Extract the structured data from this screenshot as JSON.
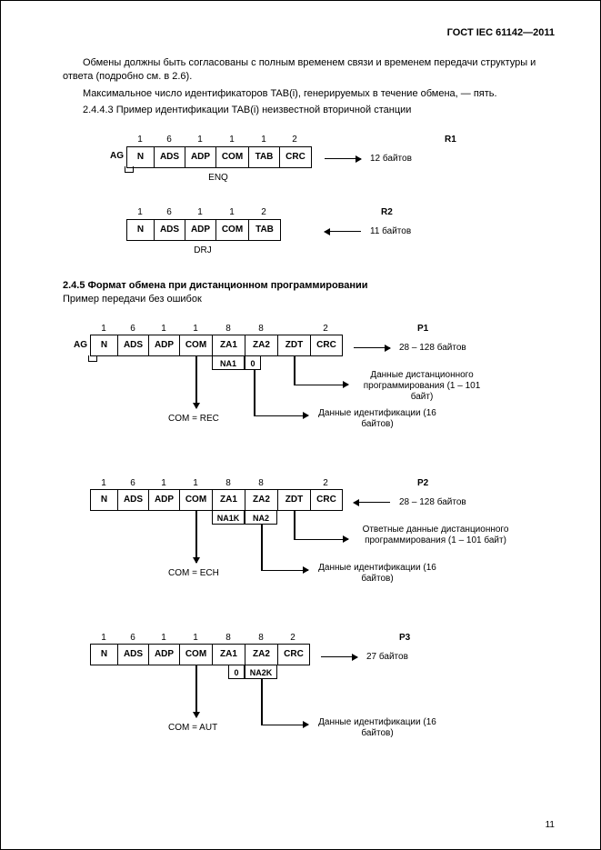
{
  "doc": {
    "header": "ГОСТ IEC 61142—2011",
    "p1": "Обмены должны быть согласованы с полным временем связи и временем передачи структуры и ответа (подробно см. в 2.6).",
    "p2": "Максимальное число идентификаторов TAB(i), генерируемых в течение обмена, — пять.",
    "p3": "2.4.4.3 Пример идентификации TAB(i) неизвестной вторичной станции",
    "section245": "2.4.5  Формат обмена при дистанционном программировании",
    "p4": "Пример передачи без ошибок",
    "page_number": "11"
  },
  "cellWidths": {
    "N": 30,
    "ADS": 34,
    "ADP": 34,
    "COM": 36,
    "TAB": 34,
    "CRC": 34,
    "ZA1": 36,
    "ZA2": 36,
    "ZDT": 36
  },
  "colors": {
    "fg": "#000000",
    "bg": "#ffffff"
  },
  "R1": {
    "nums": [
      "1",
      "6",
      "1",
      "1",
      "1",
      "2"
    ],
    "cells": [
      "N",
      "ADS",
      "ADP",
      "COM",
      "TAB",
      "CRC"
    ],
    "label": "R1",
    "bytes": "12 байтов",
    "ag": "AG",
    "under": "ENQ"
  },
  "R2": {
    "nums": [
      "1",
      "6",
      "1",
      "1",
      "2"
    ],
    "cells": [
      "N",
      "ADS",
      "ADP",
      "COM",
      "TAB"
    ],
    "label": "R2",
    "bytes": "11 байтов",
    "under": "DRJ"
  },
  "P1": {
    "nums": [
      "1",
      "6",
      "1",
      "1",
      "8",
      "8",
      "",
      "2"
    ],
    "cells": [
      "N",
      "ADS",
      "ADP",
      "COM",
      "ZA1",
      "ZA2",
      "ZDT",
      "CRC"
    ],
    "label": "P1",
    "bytes": "28 – 128 байтов",
    "ag": "AG",
    "sub_na1": "NA1",
    "sub_zero": "0",
    "com_note": "COM = REC",
    "callout1": "Данные дистанционного\nпрограммирования\n(1 – 101 байт)",
    "callout2": "Данные идентификации\n(16 байтов)"
  },
  "P2": {
    "nums": [
      "1",
      "6",
      "1",
      "1",
      "8",
      "8",
      "",
      "2"
    ],
    "cells": [
      "N",
      "ADS",
      "ADP",
      "COM",
      "ZA1",
      "ZA2",
      "ZDT",
      "CRC"
    ],
    "label": "P2",
    "bytes": "28 – 128 байтов",
    "sub_na1k": "NA1K",
    "sub_na2": "NA2",
    "com_note": "COM = ECH",
    "callout1": "Ответные данные дистанционного\nпрограммирования\n(1 – 101 байт)",
    "callout2": "Данные идентификации\n(16 байтов)"
  },
  "P3": {
    "nums": [
      "1",
      "6",
      "1",
      "1",
      "8",
      "8",
      "2"
    ],
    "cells": [
      "N",
      "ADS",
      "ADP",
      "COM",
      "ZA1",
      "ZA2",
      "CRC"
    ],
    "label": "P3",
    "bytes": "27 байтов",
    "sub_zero": "0",
    "sub_na2k": "NA2K",
    "com_note": "COM = AUT",
    "callout2": "Данные идентификации\n(16 байтов)"
  }
}
